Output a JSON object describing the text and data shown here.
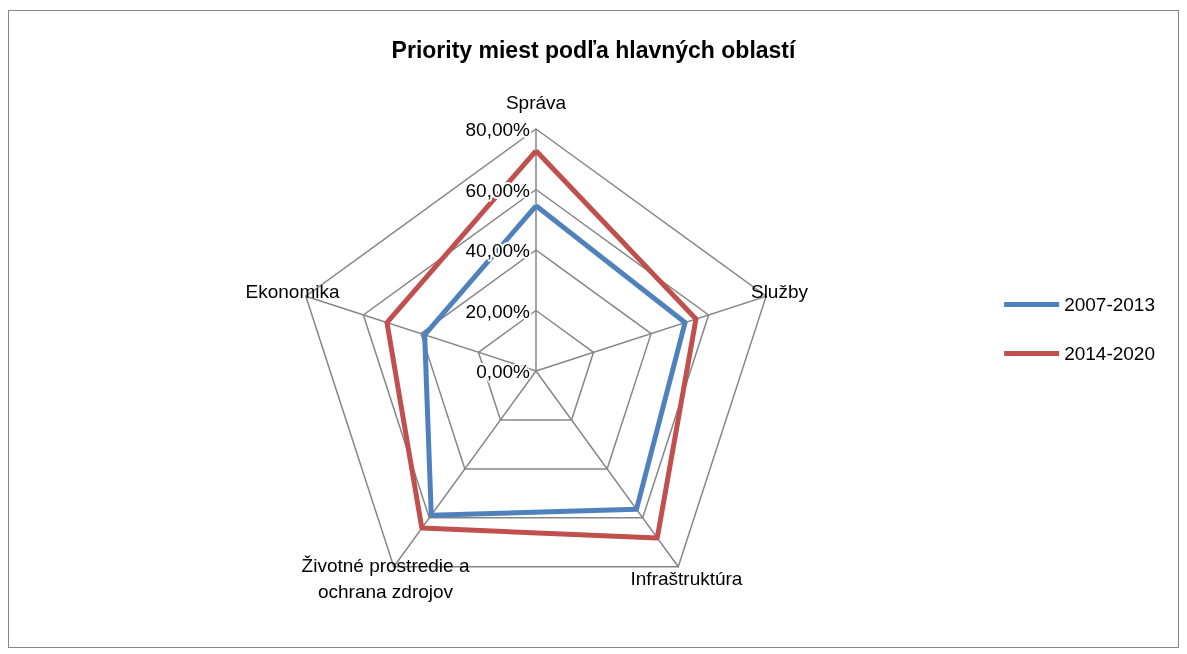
{
  "chart_data": {
    "type": "radar",
    "title": "Priority miest podľa hlavných oblastí",
    "categories": [
      "Správa",
      "Služby",
      "Infraštruktúra",
      "Životné prostredie a\nochrana zdrojov",
      "Ekonomika"
    ],
    "series": [
      {
        "name": "2007-2013",
        "color": "#4f81bd",
        "values": [
          54.6,
          51.8,
          56.5,
          58.9,
          38.7
        ]
      },
      {
        "name": "2014-2020",
        "color": "#c0504d",
        "values": [
          72.8,
          55.6,
          68.2,
          64.2,
          51.8
        ]
      }
    ],
    "ylim": [
      0,
      80
    ],
    "yticks": [
      {
        "value": 0,
        "label": "0,00%"
      },
      {
        "value": 20,
        "label": "20,00%"
      },
      {
        "value": 40,
        "label": "40,00%"
      },
      {
        "value": 60,
        "label": "60,00%"
      },
      {
        "value": 80,
        "label": "80,00%"
      }
    ],
    "grid": true,
    "legend": "right",
    "marker": "none",
    "line_style": "solid"
  }
}
